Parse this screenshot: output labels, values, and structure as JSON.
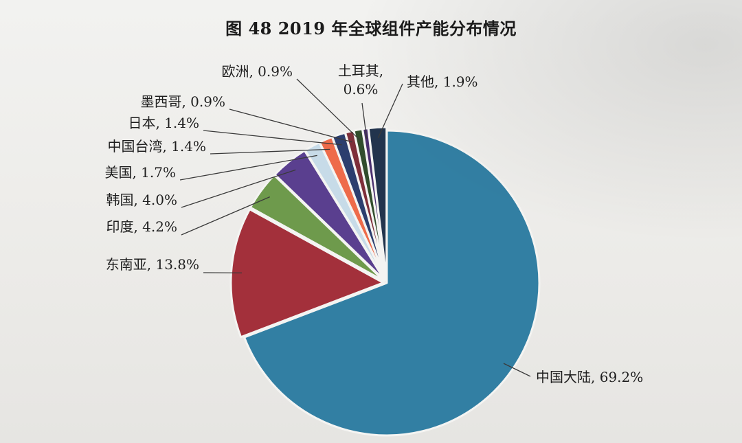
{
  "chart_data": {
    "type": "pie",
    "title": "图 48 2019 年全球组件产能分布情况",
    "slices": [
      {
        "label": "中国大陆",
        "value": 69.2,
        "display": "中国大陆, 69.2%",
        "color": "#327fa3"
      },
      {
        "label": "东南亚",
        "value": 13.8,
        "display": "东南亚, 13.8%",
        "color": "#a3303b"
      },
      {
        "label": "印度",
        "value": 4.2,
        "display": "印度, 4.2%",
        "color": "#6e9a4c"
      },
      {
        "label": "韩国",
        "value": 4.0,
        "display": "韩国, 4.0%",
        "color": "#5a3f8f"
      },
      {
        "label": "美国",
        "value": 1.7,
        "display": "美国, 1.7%",
        "color": "#c7dbe8"
      },
      {
        "label": "中国台湾",
        "value": 1.4,
        "display": "中国台湾, 1.4%",
        "color": "#ee6b4a"
      },
      {
        "label": "日本",
        "value": 1.4,
        "display": "日本, 1.4%",
        "color": "#2c3e6e"
      },
      {
        "label": "墨西哥",
        "value": 0.9,
        "display": "墨西哥, 0.9%",
        "color": "#7e2f3a"
      },
      {
        "label": "欧洲",
        "value": 0.9,
        "display": "欧洲, 0.9%",
        "color": "#314d2c"
      },
      {
        "label": "土耳其",
        "value": 0.6,
        "display": "土耳其,|0.6%",
        "color": "#4a2f6e"
      },
      {
        "label": "其他",
        "value": 1.9,
        "display": "其他, 1.9%",
        "color": "#22344d"
      }
    ]
  }
}
